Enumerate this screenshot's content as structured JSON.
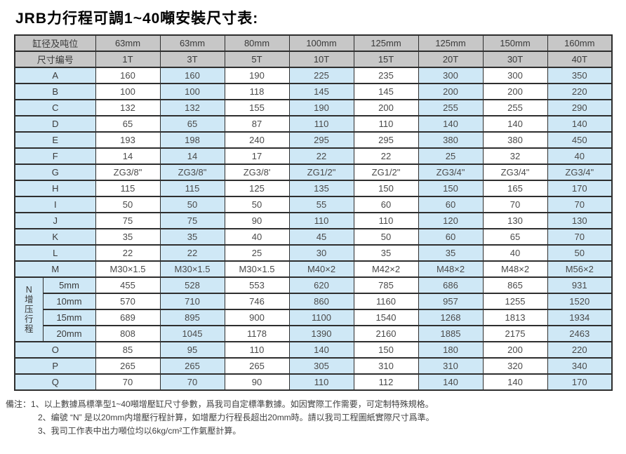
{
  "page_title": "JRB力行程可調1~40噸安裝尺寸表:",
  "colors": {
    "header_bg": "#c7c7c7",
    "stripe_blue": "#cfe8f6",
    "cell_white": "#ffffff",
    "border": "#2e2e2e",
    "text": "#4a4a4a"
  },
  "table": {
    "header_rows": [
      {
        "label": "缸径及吨位",
        "cells": [
          "63mm",
          "63mm",
          "80mm",
          "100mm",
          "125mm",
          "125mm",
          "150mm",
          "160mm"
        ]
      },
      {
        "label": "尺寸编号",
        "cells": [
          "1T",
          "3T",
          "5T",
          "10T",
          "15T",
          "20T",
          "30T",
          "40T"
        ]
      }
    ],
    "body_rows": [
      {
        "label": "A",
        "cells": [
          "160",
          "160",
          "190",
          "225",
          "235",
          "300",
          "300",
          "350"
        ]
      },
      {
        "label": "B",
        "cells": [
          "100",
          "100",
          "118",
          "145",
          "145",
          "200",
          "200",
          "220"
        ]
      },
      {
        "label": "C",
        "cells": [
          "132",
          "132",
          "155",
          "190",
          "200",
          "255",
          "255",
          "290"
        ]
      },
      {
        "label": "D",
        "cells": [
          "65",
          "65",
          "87",
          "110",
          "110",
          "140",
          "140",
          "140"
        ]
      },
      {
        "label": "E",
        "cells": [
          "193",
          "198",
          "240",
          "295",
          "295",
          "380",
          "380",
          "450"
        ]
      },
      {
        "label": "F",
        "cells": [
          "14",
          "14",
          "17",
          "22",
          "22",
          "25",
          "32",
          "40"
        ]
      },
      {
        "label": "G",
        "cells": [
          "ZG3/8\"",
          "ZG3/8\"",
          "ZG3/8'",
          "ZG1/2\"",
          "ZG1/2\"",
          "ZG3/4\"",
          "ZG3/4\"",
          "ZG3/4\""
        ]
      },
      {
        "label": "H",
        "cells": [
          "115",
          "115",
          "125",
          "135",
          "150",
          "150",
          "165",
          "170"
        ]
      },
      {
        "label": "I",
        "cells": [
          "50",
          "50",
          "50",
          "55",
          "60",
          "60",
          "70",
          "70"
        ]
      },
      {
        "label": "J",
        "cells": [
          "75",
          "75",
          "90",
          "110",
          "110",
          "120",
          "130",
          "130"
        ]
      },
      {
        "label": "K",
        "cells": [
          "35",
          "35",
          "40",
          "45",
          "50",
          "60",
          "65",
          "70"
        ]
      },
      {
        "label": "L",
        "cells": [
          "22",
          "22",
          "25",
          "30",
          "35",
          "35",
          "40",
          "50"
        ]
      },
      {
        "label": "M",
        "cells": [
          "M30×1.5",
          "M30×1.5",
          "M30×1.5",
          "M40×2",
          "M42×2",
          "M48×2",
          "M48×2",
          "M56×2"
        ]
      }
    ],
    "n_section": {
      "vertical_label": "N增压行程",
      "rows": [
        {
          "label": "5mm",
          "cells": [
            "455",
            "528",
            "553",
            "620",
            "785",
            "686",
            "865",
            "931"
          ]
        },
        {
          "label": "10mm",
          "cells": [
            "570",
            "710",
            "746",
            "860",
            "1160",
            "957",
            "1255",
            "1520"
          ]
        },
        {
          "label": "15mm",
          "cells": [
            "689",
            "895",
            "900",
            "1100",
            "1540",
            "1268",
            "1813",
            "1934"
          ]
        },
        {
          "label": "20mm",
          "cells": [
            "808",
            "1045",
            "1178",
            "1390",
            "2160",
            "1885",
            "2175",
            "2463"
          ]
        }
      ]
    },
    "tail_rows": [
      {
        "label": "O",
        "cells": [
          "85",
          "95",
          "110",
          "140",
          "150",
          "180",
          "200",
          "220"
        ]
      },
      {
        "label": "P",
        "cells": [
          "265",
          "265",
          "265",
          "305",
          "310",
          "310",
          "320",
          "340"
        ]
      },
      {
        "label": "Q",
        "cells": [
          "70",
          "70",
          "90",
          "110",
          "112",
          "140",
          "140",
          "170"
        ]
      }
    ]
  },
  "notes": {
    "prefix": "備注：",
    "items": [
      "1、以上數據爲標準型1~40噸增壓缸尺寸參數，爲我司自定標準數據。如因實際工作需要，可定制特殊規格。",
      "2、编號 “N” 是以20mm内增壓行程計算，如增壓力行程長超出20mm時。請以我司工程圖紙實際尺寸爲準。",
      "3、我司工作表中出力噸位均以6kg/cm²工作氣壓計算。"
    ]
  }
}
